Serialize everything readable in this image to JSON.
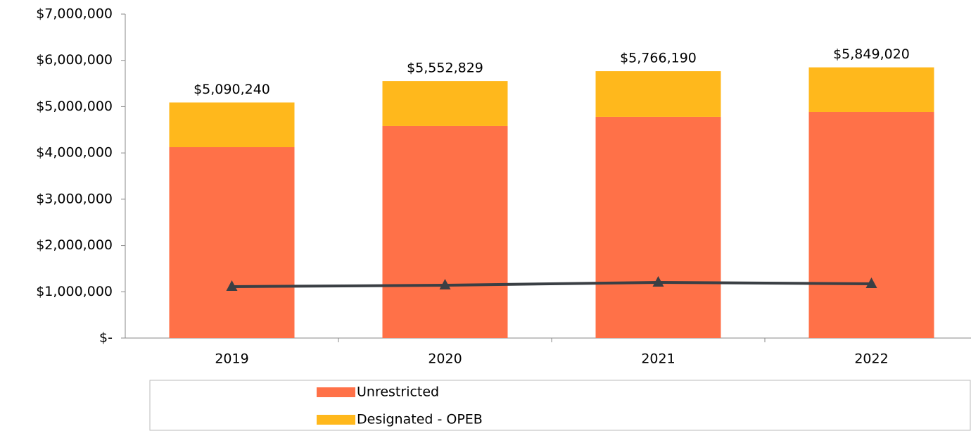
{
  "chart_data": {
    "type": "stacked-bar-line",
    "categories": [
      "2019",
      "2020",
      "2021",
      "2022"
    ],
    "series": [
      {
        "name": "Unrestricted",
        "color": "#ff7148",
        "values": [
          4124000,
          4581000,
          4779000,
          4885000
        ]
      },
      {
        "name": "Designated - OPEB",
        "color": "#ffb81c",
        "values": [
          966240,
          971829,
          987190,
          964020
        ]
      }
    ],
    "totals": [
      5090240,
      5552829,
      5766190,
      5849020
    ],
    "total_labels": [
      "$5,090,240",
      "$5,552,829",
      "$5,766,190",
      "$5,849,020"
    ],
    "line": {
      "color": "#3a3f44",
      "values": [
        1111000,
        1141000,
        1202000,
        1172000
      ]
    },
    "ylim": [
      0,
      7000000
    ],
    "yticks": [
      {
        "value": 0,
        "label": "$-"
      },
      {
        "value": 1000000,
        "label": "$1,000,000"
      },
      {
        "value": 2000000,
        "label": "$2,000,000"
      },
      {
        "value": 3000000,
        "label": "$3,000,000"
      },
      {
        "value": 4000000,
        "label": "$4,000,000"
      },
      {
        "value": 5000000,
        "label": "$5,000,000"
      },
      {
        "value": 6000000,
        "label": "$6,000,000"
      },
      {
        "value": 7000000,
        "label": "$7,000,000"
      }
    ]
  }
}
